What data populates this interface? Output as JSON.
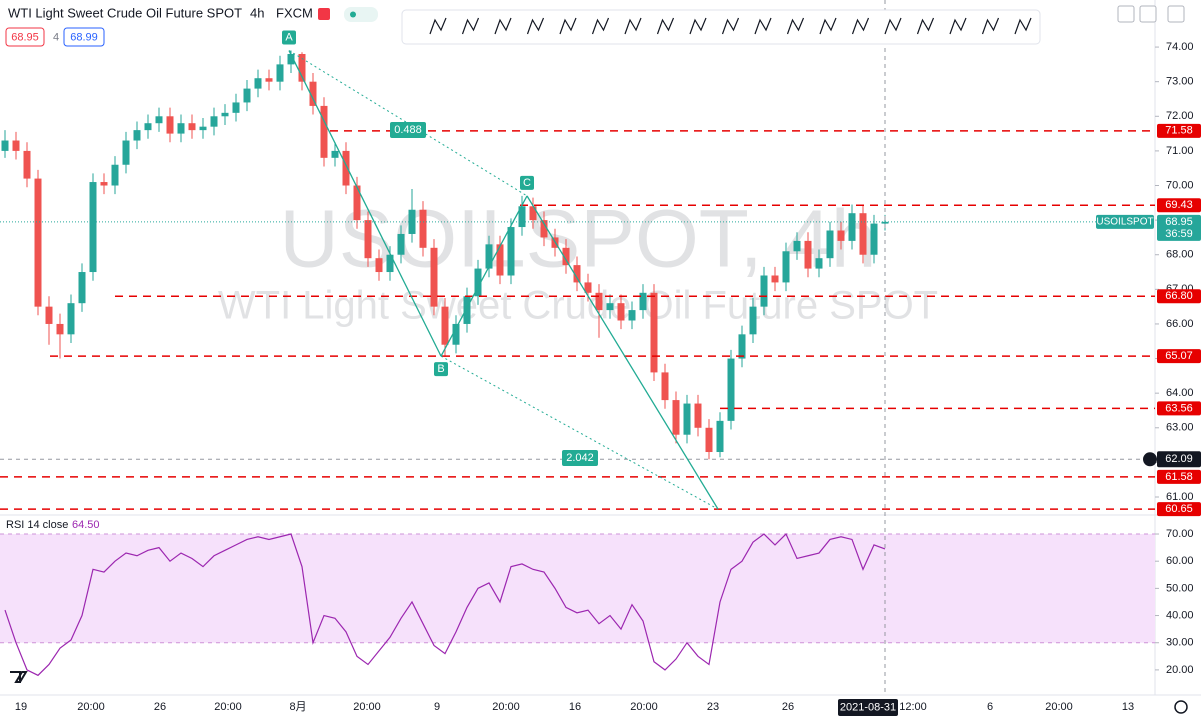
{
  "header": {
    "symbol": "WTI Light Sweet Crude Oil Future SPOT",
    "interval": "4h",
    "exchange": "FXCM",
    "sell": "68.95",
    "spread": "4",
    "buy": "68.99"
  },
  "chart_data": [
    {
      "type": "candlestick",
      "watermark": "USOILSPOT, 4h",
      "watermark_subtitle": "WTI Light Sweet Crude Oil Future SPOT",
      "up_color": "#26a69a",
      "down_color": "#ef5350",
      "open": [
        71.0,
        71.3,
        71.0,
        70.2,
        66.5,
        66.0,
        65.7,
        66.6,
        67.5,
        70.1,
        70.0,
        70.6,
        71.3,
        71.6,
        71.8,
        72.0,
        71.5,
        71.8,
        71.6,
        71.7,
        72.0,
        72.1,
        72.4,
        72.8,
        73.1,
        73.0,
        73.5,
        73.8,
        73.0,
        72.3,
        70.8,
        71.0,
        70.0,
        69.0,
        67.9,
        67.5,
        68.0,
        68.6,
        69.3,
        68.2,
        66.5,
        65.4,
        66.0,
        66.8,
        67.6,
        68.3,
        67.4,
        68.8,
        69.4,
        69.0,
        68.5,
        68.2,
        67.7,
        67.2,
        66.9,
        66.4,
        66.6,
        66.1,
        66.4,
        66.9,
        64.6,
        63.8,
        62.8,
        63.7,
        63.0,
        62.3,
        63.2,
        65.0,
        65.7,
        66.5,
        67.4,
        67.2,
        68.1,
        68.4,
        67.6,
        67.9,
        68.7,
        68.4,
        69.2,
        68.0,
        68.9
      ],
      "high": [
        71.6,
        71.55,
        71.25,
        70.45,
        66.8,
        66.3,
        66.85,
        67.75,
        70.35,
        70.35,
        70.85,
        71.55,
        71.85,
        72.05,
        72.25,
        72.25,
        72.05,
        72.05,
        71.95,
        72.25,
        72.35,
        72.65,
        73.05,
        73.35,
        73.35,
        73.75,
        73.9,
        73.85,
        73.25,
        72.55,
        71.25,
        71.25,
        70.25,
        69.25,
        68.15,
        68.25,
        68.85,
        69.9,
        69.55,
        68.45,
        66.75,
        66.25,
        67.05,
        67.85,
        68.55,
        68.55,
        69.05,
        69.7,
        69.65,
        69.25,
        68.75,
        68.45,
        67.95,
        67.45,
        67.15,
        66.85,
        66.85,
        66.65,
        67.15,
        67.15,
        64.85,
        64.05,
        63.95,
        63.95,
        63.25,
        63.45,
        65.25,
        65.95,
        66.75,
        67.65,
        67.65,
        68.35,
        68.65,
        68.65,
        68.15,
        68.95,
        68.95,
        69.45,
        69.45,
        69.15,
        69.15
      ],
      "low": [
        70.8,
        70.75,
        69.95,
        66.25,
        65.4,
        65.0,
        65.45,
        66.35,
        67.25,
        69.75,
        69.75,
        70.35,
        71.05,
        71.35,
        71.55,
        71.25,
        71.25,
        71.35,
        71.35,
        71.45,
        71.75,
        71.85,
        72.15,
        72.55,
        72.75,
        72.75,
        73.25,
        72.75,
        72.05,
        70.55,
        70.55,
        69.75,
        68.75,
        67.65,
        67.25,
        67.25,
        67.75,
        68.35,
        67.95,
        66.25,
        65.05,
        65.15,
        65.75,
        66.55,
        67.35,
        67.15,
        67.15,
        68.55,
        68.75,
        68.25,
        67.95,
        67.45,
        66.95,
        66.65,
        65.6,
        66.15,
        65.85,
        65.85,
        66.15,
        64.35,
        63.55,
        62.55,
        62.55,
        62.75,
        62.09,
        62.15,
        62.95,
        64.75,
        65.45,
        66.25,
        66.95,
        66.95,
        67.85,
        67.35,
        67.35,
        67.65,
        68.15,
        68.15,
        67.75,
        67.75,
        68.7
      ],
      "close": [
        71.3,
        71.0,
        70.2,
        66.5,
        66.0,
        65.7,
        66.6,
        67.5,
        70.1,
        70.0,
        70.6,
        71.3,
        71.6,
        71.8,
        72.0,
        71.5,
        71.8,
        71.6,
        71.7,
        72.0,
        72.1,
        72.4,
        72.8,
        73.1,
        73.0,
        73.5,
        73.8,
        73.0,
        72.3,
        70.8,
        71.0,
        70.0,
        69.0,
        67.9,
        67.5,
        68.0,
        68.6,
        69.3,
        68.2,
        66.5,
        65.4,
        66.0,
        66.8,
        67.6,
        68.3,
        67.4,
        68.8,
        69.4,
        69.0,
        68.5,
        68.2,
        67.7,
        67.2,
        66.9,
        66.4,
        66.6,
        66.1,
        66.4,
        66.9,
        64.6,
        63.8,
        62.8,
        63.7,
        63.0,
        62.3,
        63.2,
        65.0,
        65.7,
        66.5,
        67.4,
        67.2,
        68.1,
        68.4,
        67.6,
        67.9,
        68.7,
        68.4,
        69.2,
        68.0,
        68.9,
        68.95
      ],
      "ylim": [
        60.48,
        75.36
      ],
      "yticks": [
        {
          "value": 61,
          "label": "61.00"
        },
        {
          "value": 62,
          "label": "62.00"
        },
        {
          "value": 63,
          "label": "63.00"
        },
        {
          "value": 64,
          "label": "64.00"
        },
        {
          "value": 65,
          "label": "65.00"
        },
        {
          "value": 66,
          "label": "66.00"
        },
        {
          "value": 67,
          "label": "67.00"
        },
        {
          "value": 68,
          "label": "68.00"
        },
        {
          "value": 69,
          "label": "69.00"
        },
        {
          "value": 70,
          "label": "70.00"
        },
        {
          "value": 71,
          "label": "71.00"
        },
        {
          "value": 72,
          "label": "72.00"
        },
        {
          "value": 73,
          "label": "73.00"
        },
        {
          "value": 74,
          "label": "74.00"
        }
      ],
      "x_labels": [
        "19",
        "20:00",
        "26",
        "20:00",
        "8月",
        "20:00",
        "9",
        "20:00",
        "16",
        "20:00",
        "23",
        "26",
        "12:00",
        "6",
        "20:00",
        "13"
      ],
      "crosshair_time": "2021-08-31",
      "crosshair_price": 62.09,
      "level_color": "#e60000",
      "levels": [
        71.58,
        69.43,
        {
          "value": 66.8,
          "label": "66.80"
        },
        65.07,
        63.56,
        61.58,
        60.65
      ],
      "last_price": 68.95,
      "symbol_label": "USOILSPOT",
      "countdown": "36:59",
      "pattern": {
        "color": "#22ab94",
        "labels": [
          "A",
          "B",
          "C",
          null
        ],
        "prices": [
          73.9,
          65.07,
          69.7,
          60.65
        ],
        "ratios": [
          0.488,
          2.042
        ]
      }
    },
    {
      "type": "line",
      "title": "RSI 14 close",
      "last_value": {
        "value": 64.5,
        "label": "64.50"
      },
      "color": "#9c27b0",
      "band": [
        30,
        70
      ],
      "band_color": "#f6e1fb",
      "values": [
        42,
        30,
        20,
        18,
        22,
        28,
        31,
        40,
        57,
        56,
        60,
        63,
        62,
        64,
        65,
        60,
        63,
        61,
        58,
        62,
        64,
        66,
        68,
        69,
        68,
        69,
        70,
        58,
        30,
        40,
        39,
        34,
        25,
        22,
        27,
        32,
        39,
        45,
        37,
        29,
        26,
        34,
        43,
        50,
        52,
        45,
        58,
        59,
        57,
        56,
        50,
        43,
        41,
        42,
        37,
        40,
        35,
        44,
        38,
        23,
        20,
        24,
        30,
        25,
        22,
        45,
        57,
        60,
        67,
        70,
        66,
        70,
        61,
        62,
        63,
        68,
        69,
        68,
        57,
        66,
        64.5
      ],
      "ylim": [
        11.5,
        77
      ],
      "yticks": [
        {
          "value": 20,
          "label": "20.00"
        },
        {
          "value": 30,
          "label": "30.00"
        },
        {
          "value": 40,
          "label": "40.00"
        },
        {
          "value": 50,
          "label": "50.00"
        },
        {
          "value": 60,
          "label": "60.00"
        },
        {
          "value": 70,
          "label": "70.00"
        }
      ]
    }
  ]
}
